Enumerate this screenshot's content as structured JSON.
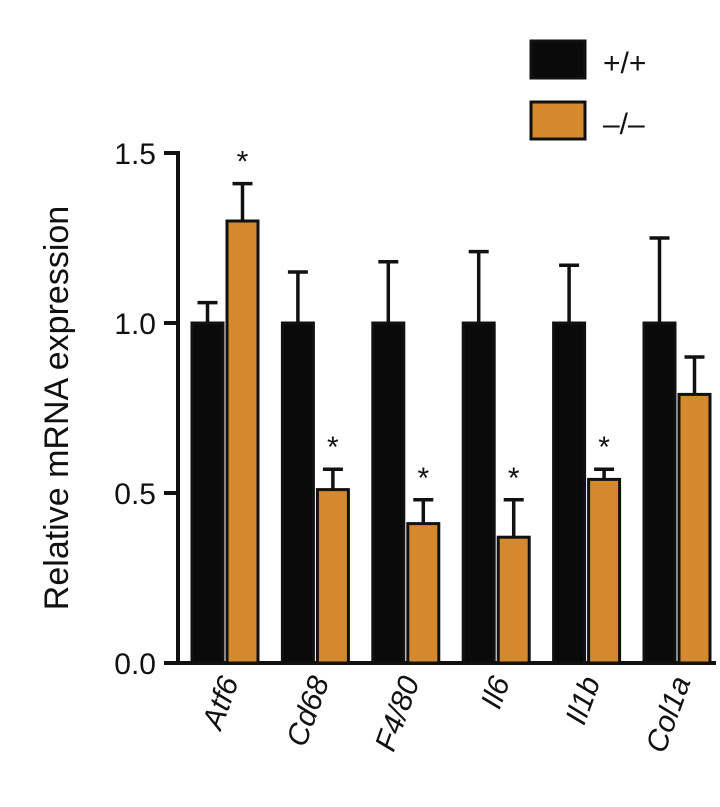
{
  "chart_data": {
    "type": "bar",
    "title": "",
    "xlabel": "",
    "ylabel": "Relative mRNA expression",
    "ylim": [
      0,
      1.5
    ],
    "yticks": [
      "0.0",
      "0.5",
      "1.0",
      "1.5"
    ],
    "grid": false,
    "legend_position": "top-right",
    "categories": [
      "Atf6",
      "Cd68",
      "F4/80",
      "Il6",
      "Il1b",
      "Col1a"
    ],
    "series": [
      {
        "name": "+/+",
        "color": "#0a0a0a",
        "values": [
          1.0,
          1.0,
          1.0,
          1.0,
          1.0,
          1.0
        ],
        "errors": [
          0.06,
          0.15,
          0.18,
          0.21,
          0.17,
          0.25
        ],
        "significance": [
          "",
          "",
          "",
          "",
          "",
          ""
        ]
      },
      {
        "name": "–/–",
        "color": "#d4892f",
        "values": [
          1.3,
          0.51,
          0.41,
          0.37,
          0.54,
          0.79
        ],
        "errors": [
          0.11,
          0.06,
          0.07,
          0.11,
          0.03,
          0.11
        ],
        "significance": [
          "*",
          "*",
          "*",
          "*",
          "*",
          ""
        ]
      }
    ]
  }
}
